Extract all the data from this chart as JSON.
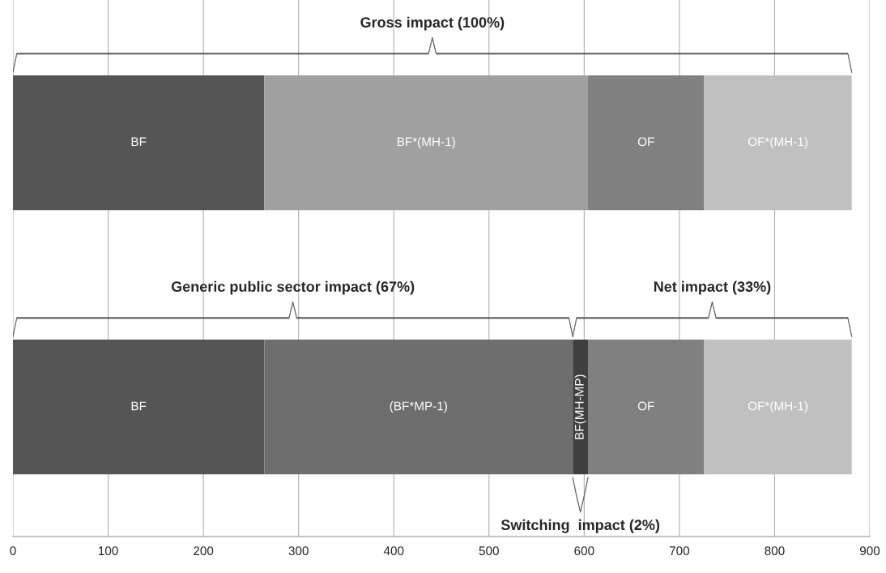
{
  "chart_data": {
    "type": "bar",
    "orientation": "horizontal",
    "stacked": true,
    "categories": [
      null,
      null
    ],
    "series": [
      {
        "color": "#555555",
        "values": [
          264,
          264
        ],
        "value_labels": [
          "BF",
          "BF"
        ]
      },
      {
        "colors": [
          "#a0a0a0",
          "#6e6e6e"
        ],
        "values": [
          340,
          324
        ],
        "value_labels": [
          "BF*(MH-1)",
          "(BF*MP-1)"
        ]
      },
      {
        "color": "#404040",
        "values": [
          null,
          16
        ],
        "value_labels": [
          null,
          "BF(MH-MP)"
        ]
      },
      {
        "color": "#808080",
        "values": [
          122,
          122
        ],
        "value_labels": [
          "OF",
          "OF"
        ]
      },
      {
        "color": "#c0c0c0",
        "values": [
          155,
          155
        ],
        "value_labels": [
          "OF*(MH-1)",
          "OF*(MH-1)"
        ]
      }
    ],
    "annotations": [
      "Gross impact (100%)",
      "Generic public sector impact (67%)",
      "Net impact (33%)",
      "Switching  impact (2%)"
    ],
    "xlim": [
      0,
      900
    ],
    "xticks": [
      0,
      100,
      200,
      300,
      400,
      500,
      600,
      700,
      800,
      900
    ],
    "grid": "x",
    "tick_labels": "x"
  }
}
